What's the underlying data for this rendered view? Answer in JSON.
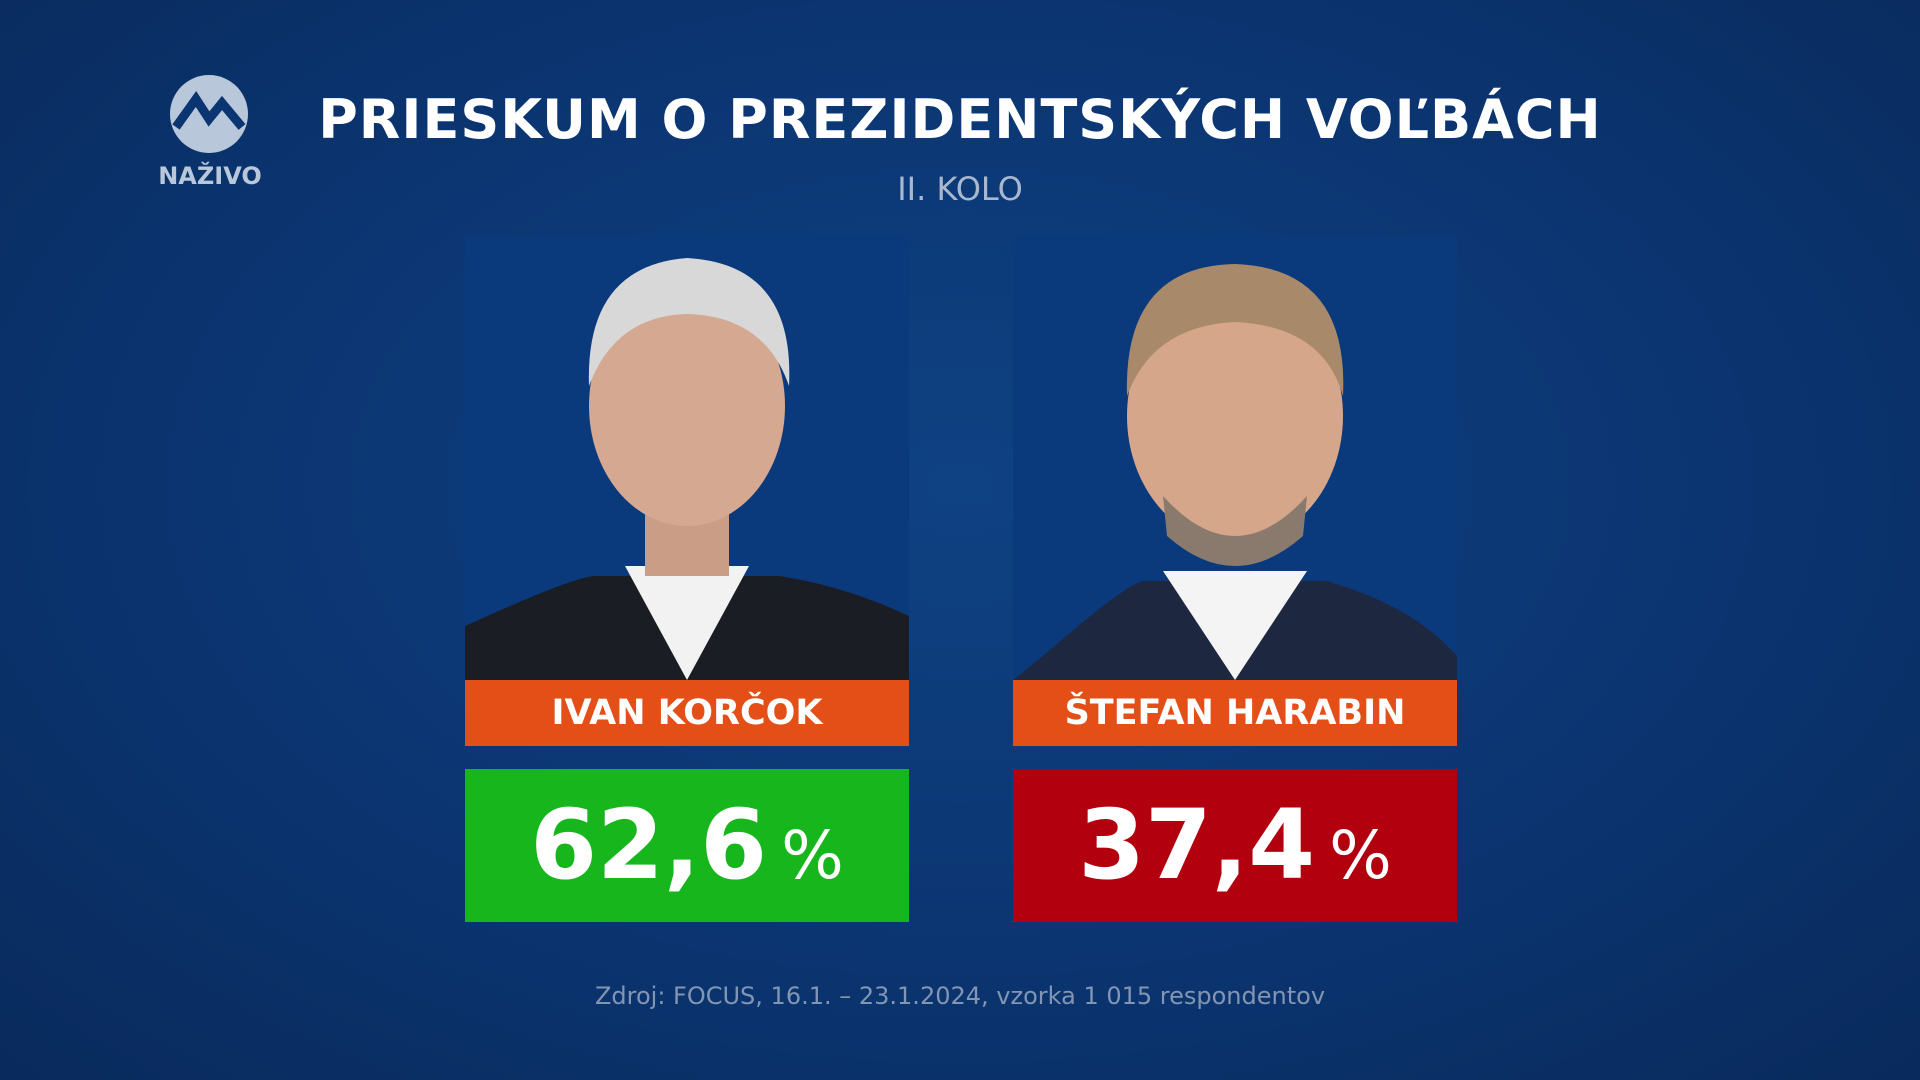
{
  "logo": {
    "label": "NAŽIVO"
  },
  "header": {
    "title": "PRIESKUM O PREZIDENTSKÝCH VOĽBÁCH",
    "subtitle": "II. KOLO"
  },
  "candidates": [
    {
      "name": "IVAN KORČOK",
      "result": "62,6",
      "unit": "%"
    },
    {
      "name": "ŠTEFAN HARABIN",
      "result": "37,4",
      "unit": "%"
    }
  ],
  "footer": {
    "source": "Zdroj: FOCUS, 16.1. – 23.1.2024, vzorka 1 015 respondentov"
  }
}
